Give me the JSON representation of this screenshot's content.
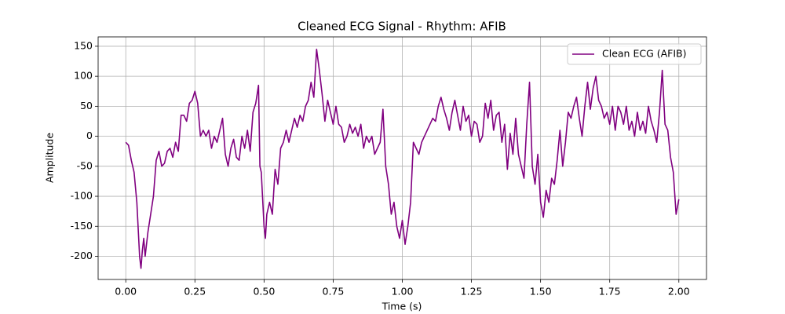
{
  "chart_data": {
    "type": "line",
    "title": "Cleaned ECG Signal - Rhythm: AFIB",
    "xlabel": "Time (s)",
    "ylabel": "Amplitude",
    "x": [
      0,
      0.01,
      0.02,
      0.03,
      0.04,
      0.05,
      0.055,
      0.06,
      0.065,
      0.07,
      0.08,
      0.09,
      0.1,
      0.11,
      0.12,
      0.13,
      0.14,
      0.15,
      0.16,
      0.17,
      0.18,
      0.19,
      0.2,
      0.21,
      0.22,
      0.23,
      0.24,
      0.25,
      0.26,
      0.27,
      0.28,
      0.29,
      0.3,
      0.31,
      0.32,
      0.33,
      0.34,
      0.35,
      0.36,
      0.37,
      0.38,
      0.39,
      0.4,
      0.41,
      0.42,
      0.43,
      0.44,
      0.45,
      0.46,
      0.47,
      0.48,
      0.485,
      0.49,
      0.5,
      0.505,
      0.51,
      0.52,
      0.53,
      0.54,
      0.55,
      0.56,
      0.57,
      0.58,
      0.59,
      0.6,
      0.61,
      0.62,
      0.63,
      0.64,
      0.65,
      0.66,
      0.67,
      0.68,
      0.69,
      0.7,
      0.71,
      0.72,
      0.73,
      0.74,
      0.75,
      0.76,
      0.77,
      0.78,
      0.79,
      0.8,
      0.81,
      0.82,
      0.83,
      0.84,
      0.85,
      0.86,
      0.87,
      0.88,
      0.89,
      0.9,
      0.91,
      0.92,
      0.93,
      0.94,
      0.95,
      0.96,
      0.97,
      0.98,
      0.99,
      1.0,
      1.01,
      1.02,
      1.03,
      1.04,
      1.05,
      1.06,
      1.07,
      1.08,
      1.09,
      1.1,
      1.11,
      1.12,
      1.13,
      1.14,
      1.15,
      1.16,
      1.17,
      1.18,
      1.19,
      1.2,
      1.21,
      1.22,
      1.23,
      1.24,
      1.25,
      1.26,
      1.27,
      1.28,
      1.29,
      1.3,
      1.31,
      1.32,
      1.33,
      1.34,
      1.35,
      1.36,
      1.37,
      1.38,
      1.39,
      1.4,
      1.41,
      1.42,
      1.43,
      1.44,
      1.45,
      1.46,
      1.47,
      1.48,
      1.49,
      1.5,
      1.51,
      1.52,
      1.53,
      1.54,
      1.55,
      1.56,
      1.57,
      1.58,
      1.59,
      1.6,
      1.61,
      1.62,
      1.63,
      1.64,
      1.65,
      1.66,
      1.67,
      1.68,
      1.69,
      1.7,
      1.71,
      1.72,
      1.73,
      1.74,
      1.75,
      1.76,
      1.77,
      1.78,
      1.79,
      1.8,
      1.81,
      1.82,
      1.83,
      1.84,
      1.85,
      1.86,
      1.87,
      1.88,
      1.89,
      1.9,
      1.91,
      1.92,
      1.93,
      1.94,
      1.95,
      1.96,
      1.97,
      1.98,
      1.99,
      2.0
    ],
    "series": [
      {
        "name": "Clean ECG (AFIB)",
        "color": "#800080",
        "values": [
          -10,
          -15,
          -40,
          -60,
          -110,
          -200,
          -220,
          -190,
          -170,
          -200,
          -160,
          -130,
          -100,
          -40,
          -25,
          -50,
          -45,
          -25,
          -20,
          -35,
          -10,
          -25,
          35,
          35,
          25,
          55,
          60,
          75,
          55,
          0,
          10,
          0,
          10,
          -20,
          0,
          -10,
          10,
          30,
          -30,
          -50,
          -20,
          -5,
          -35,
          -40,
          0,
          -20,
          10,
          -25,
          40,
          55,
          85,
          -50,
          -60,
          -150,
          -170,
          -130,
          -110,
          -130,
          -55,
          -80,
          -20,
          -10,
          10,
          -10,
          10,
          30,
          15,
          35,
          25,
          50,
          60,
          90,
          65,
          145,
          110,
          70,
          25,
          60,
          40,
          20,
          50,
          20,
          15,
          -10,
          0,
          20,
          5,
          15,
          0,
          20,
          -20,
          0,
          -10,
          0,
          -30,
          -20,
          -10,
          45,
          -50,
          -80,
          -130,
          -110,
          -150,
          -170,
          -140,
          -180,
          -150,
          -110,
          -10,
          -20,
          -30,
          -10,
          0,
          10,
          20,
          30,
          25,
          50,
          65,
          45,
          30,
          10,
          40,
          60,
          35,
          10,
          50,
          25,
          35,
          0,
          25,
          20,
          -10,
          0,
          55,
          30,
          60,
          10,
          35,
          40,
          -10,
          20,
          -55,
          5,
          -30,
          30,
          -30,
          -50,
          -70,
          20,
          90,
          -50,
          -80,
          -30,
          -110,
          -135,
          -90,
          -110,
          -70,
          -80,
          -40,
          10,
          -50,
          -10,
          40,
          30,
          50,
          65,
          30,
          0,
          50,
          90,
          45,
          80,
          100,
          60,
          50,
          30,
          40,
          20,
          50,
          10,
          50,
          40,
          20,
          50,
          10,
          25,
          0,
          40,
          10,
          25,
          5,
          50,
          25,
          10,
          -10,
          40,
          110,
          20,
          10,
          -35,
          -60,
          -130,
          -105
        ]
      }
    ],
    "xlim": [
      -0.1,
      2.1
    ],
    "ylim": [
      -238.6,
      165.6
    ],
    "xticks": [
      {
        "value": 0,
        "label": "0.00"
      },
      {
        "value": 0.25,
        "label": "0.25"
      },
      {
        "value": 0.5,
        "label": "0.50"
      },
      {
        "value": 0.75,
        "label": "0.75"
      },
      {
        "value": 1,
        "label": "1.00"
      },
      {
        "value": 1.25,
        "label": "1.25"
      },
      {
        "value": 1.5,
        "label": "1.50"
      },
      {
        "value": 1.75,
        "label": "1.75"
      },
      {
        "value": 2,
        "label": "2.00"
      }
    ],
    "yticks": [
      -200,
      -150,
      -100,
      -50,
      0,
      50,
      100,
      150
    ],
    "grid": true,
    "legend": "upper right"
  }
}
